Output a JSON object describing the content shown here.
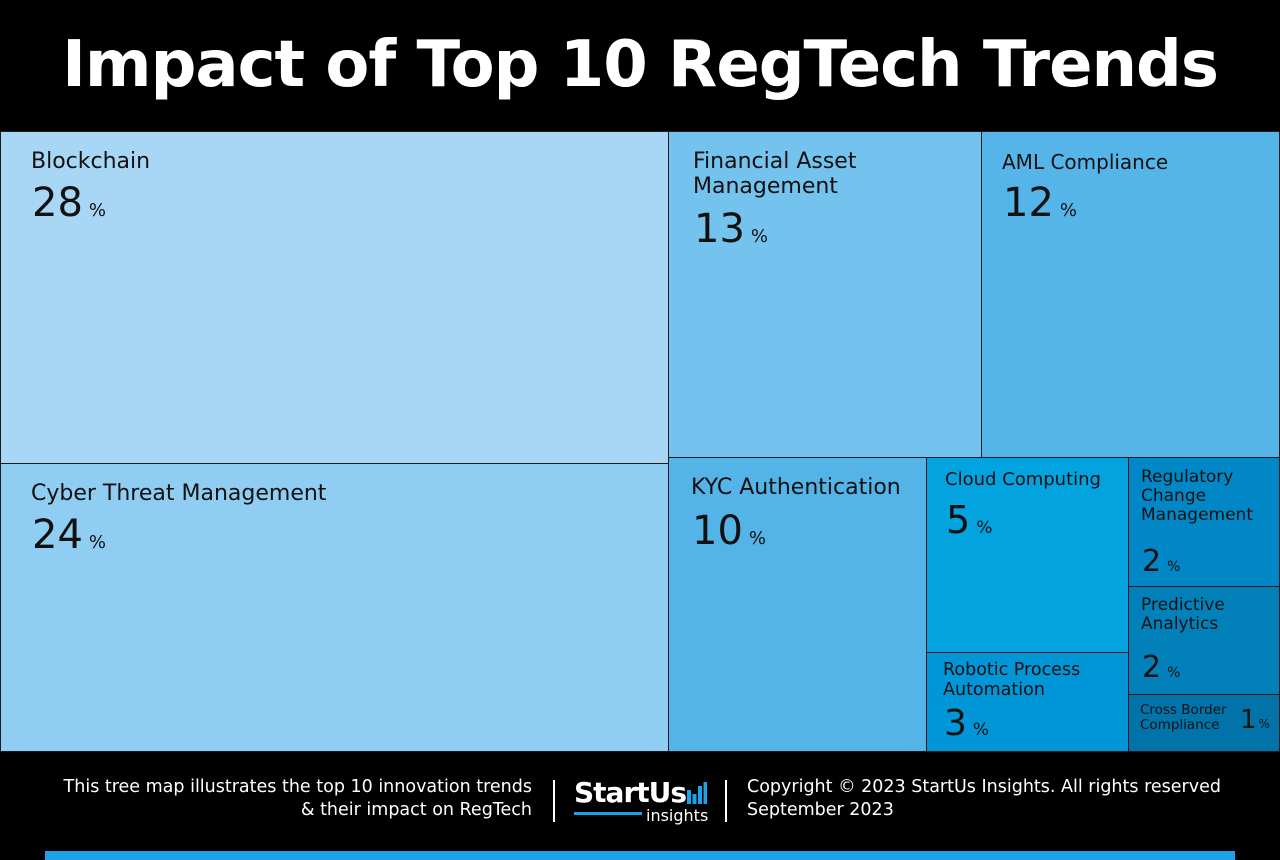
{
  "header": {
    "title": "Impact of Top 10 RegTech Trends"
  },
  "chart_data": {
    "type": "treemap",
    "title": "Impact of Top 10 RegTech Trends",
    "unit": "%",
    "items": [
      {
        "name": "Blockchain",
        "value": 28,
        "color": "#a8d7f5"
      },
      {
        "name": "Cyber Threat Management",
        "value": 24,
        "color": "#8fcdf2"
      },
      {
        "name": "Financial Asset Management",
        "value": 13,
        "color": "#74c3ee"
      },
      {
        "name": "AML Compliance",
        "value": 12,
        "color": "#55b5e8"
      },
      {
        "name": "KYC Authentication",
        "value": 10,
        "color": "#54b3e7"
      },
      {
        "name": "Cloud Computing",
        "value": 5,
        "color": "#03a3e0"
      },
      {
        "name": "Robotic Process Automation",
        "value": 3,
        "color": "#0196d7"
      },
      {
        "name": "Regulatory Change Management",
        "value": 2,
        "color": "#0187c5"
      },
      {
        "name": "Predictive Analytics",
        "value": 2,
        "color": "#0180ba"
      },
      {
        "name": "Cross Border Compliance",
        "value": 1,
        "color": "#0173a8"
      }
    ]
  },
  "footer": {
    "description_line1": "This tree map illustrates the top 10 innovation trends",
    "description_line2": "& their impact on RegTech",
    "brand_name": "StartUs",
    "brand_sub": "insights",
    "copyright": "Copyright © 2023 StartUs Insights. All rights reserved",
    "date": "September 2023",
    "accent_color": "#1aa3e8"
  }
}
